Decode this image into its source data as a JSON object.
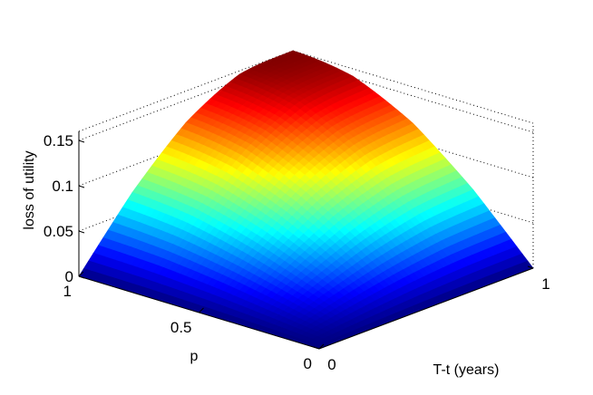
{
  "chart_data": {
    "type": "surface",
    "title": "",
    "xlabel": "T-t (years)",
    "ylabel": "p",
    "zlabel": "loss of utility",
    "xlim": [
      0,
      1
    ],
    "ylim": [
      0,
      1
    ],
    "zlim": [
      0,
      0.16
    ],
    "x_ticks": [
      "0",
      "1"
    ],
    "y_ticks": [
      "0",
      "0.5",
      "1"
    ],
    "z_ticks": [
      "0",
      "0.05",
      "0.1",
      "0.15"
    ],
    "colormap": "jet",
    "grid": true,
    "x": [
      0,
      0.25,
      0.5,
      0.75,
      1
    ],
    "y": [
      0,
      0.25,
      0.5,
      0.75,
      1
    ],
    "z": [
      [
        0,
        0,
        0,
        0,
        0
      ],
      [
        0,
        0.025,
        0.048,
        0.066,
        0.075
      ],
      [
        0,
        0.048,
        0.09,
        0.118,
        0.13
      ],
      [
        0,
        0.066,
        0.118,
        0.15,
        0.158
      ],
      [
        0,
        0.074,
        0.128,
        0.158,
        0.16
      ]
    ]
  }
}
